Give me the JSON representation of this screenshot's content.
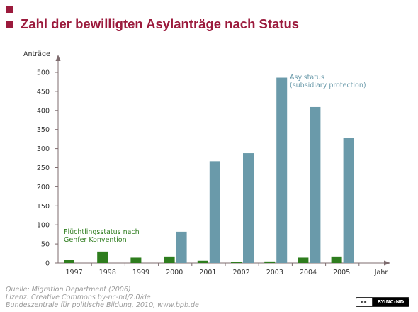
{
  "header": {
    "title": "Zahl der bewilligten Asylanträge nach Status",
    "accent_color": "#9b1a3c"
  },
  "chart_data": {
    "type": "bar",
    "title": "Zahl der bewilligten Asylanträge nach Status",
    "ylabel": "Anträge",
    "xlabel": "Jahr",
    "ylim": [
      0,
      500
    ],
    "yticks": [
      0,
      50,
      100,
      150,
      200,
      250,
      300,
      350,
      400,
      450,
      500
    ],
    "categories": [
      "1997",
      "1998",
      "1999",
      "2000",
      "2001",
      "2002",
      "2003",
      "2004",
      "2005"
    ],
    "series": [
      {
        "name": "Flüchtlingsstatus nach Genfer Konvention",
        "label_lines": [
          "Flüchtlingsstatus nach",
          "Genfer Konvention"
        ],
        "color": "#2e7d1e",
        "values": [
          8,
          30,
          14,
          17,
          6,
          3,
          4,
          14,
          17
        ]
      },
      {
        "name": "Asylstatus (subsidiary protection)",
        "label_lines": [
          "Asylstatus",
          "(subsidiary protection)"
        ],
        "color": "#6a9aaa",
        "values": [
          0,
          0,
          0,
          82,
          267,
          288,
          486,
          409,
          328
        ]
      }
    ],
    "grid": false,
    "legend": "inline labels"
  },
  "footer": {
    "source_lines": [
      "Quelle: Migration Department (2006)",
      "Lizenz: Creative Commons by-nc-nd/2.0/de",
      "Bundeszentrale für politische Bildung, 2010, www.bpb.de"
    ],
    "license_badge": {
      "cc": "cc",
      "terms": "BY-NC-ND"
    }
  }
}
